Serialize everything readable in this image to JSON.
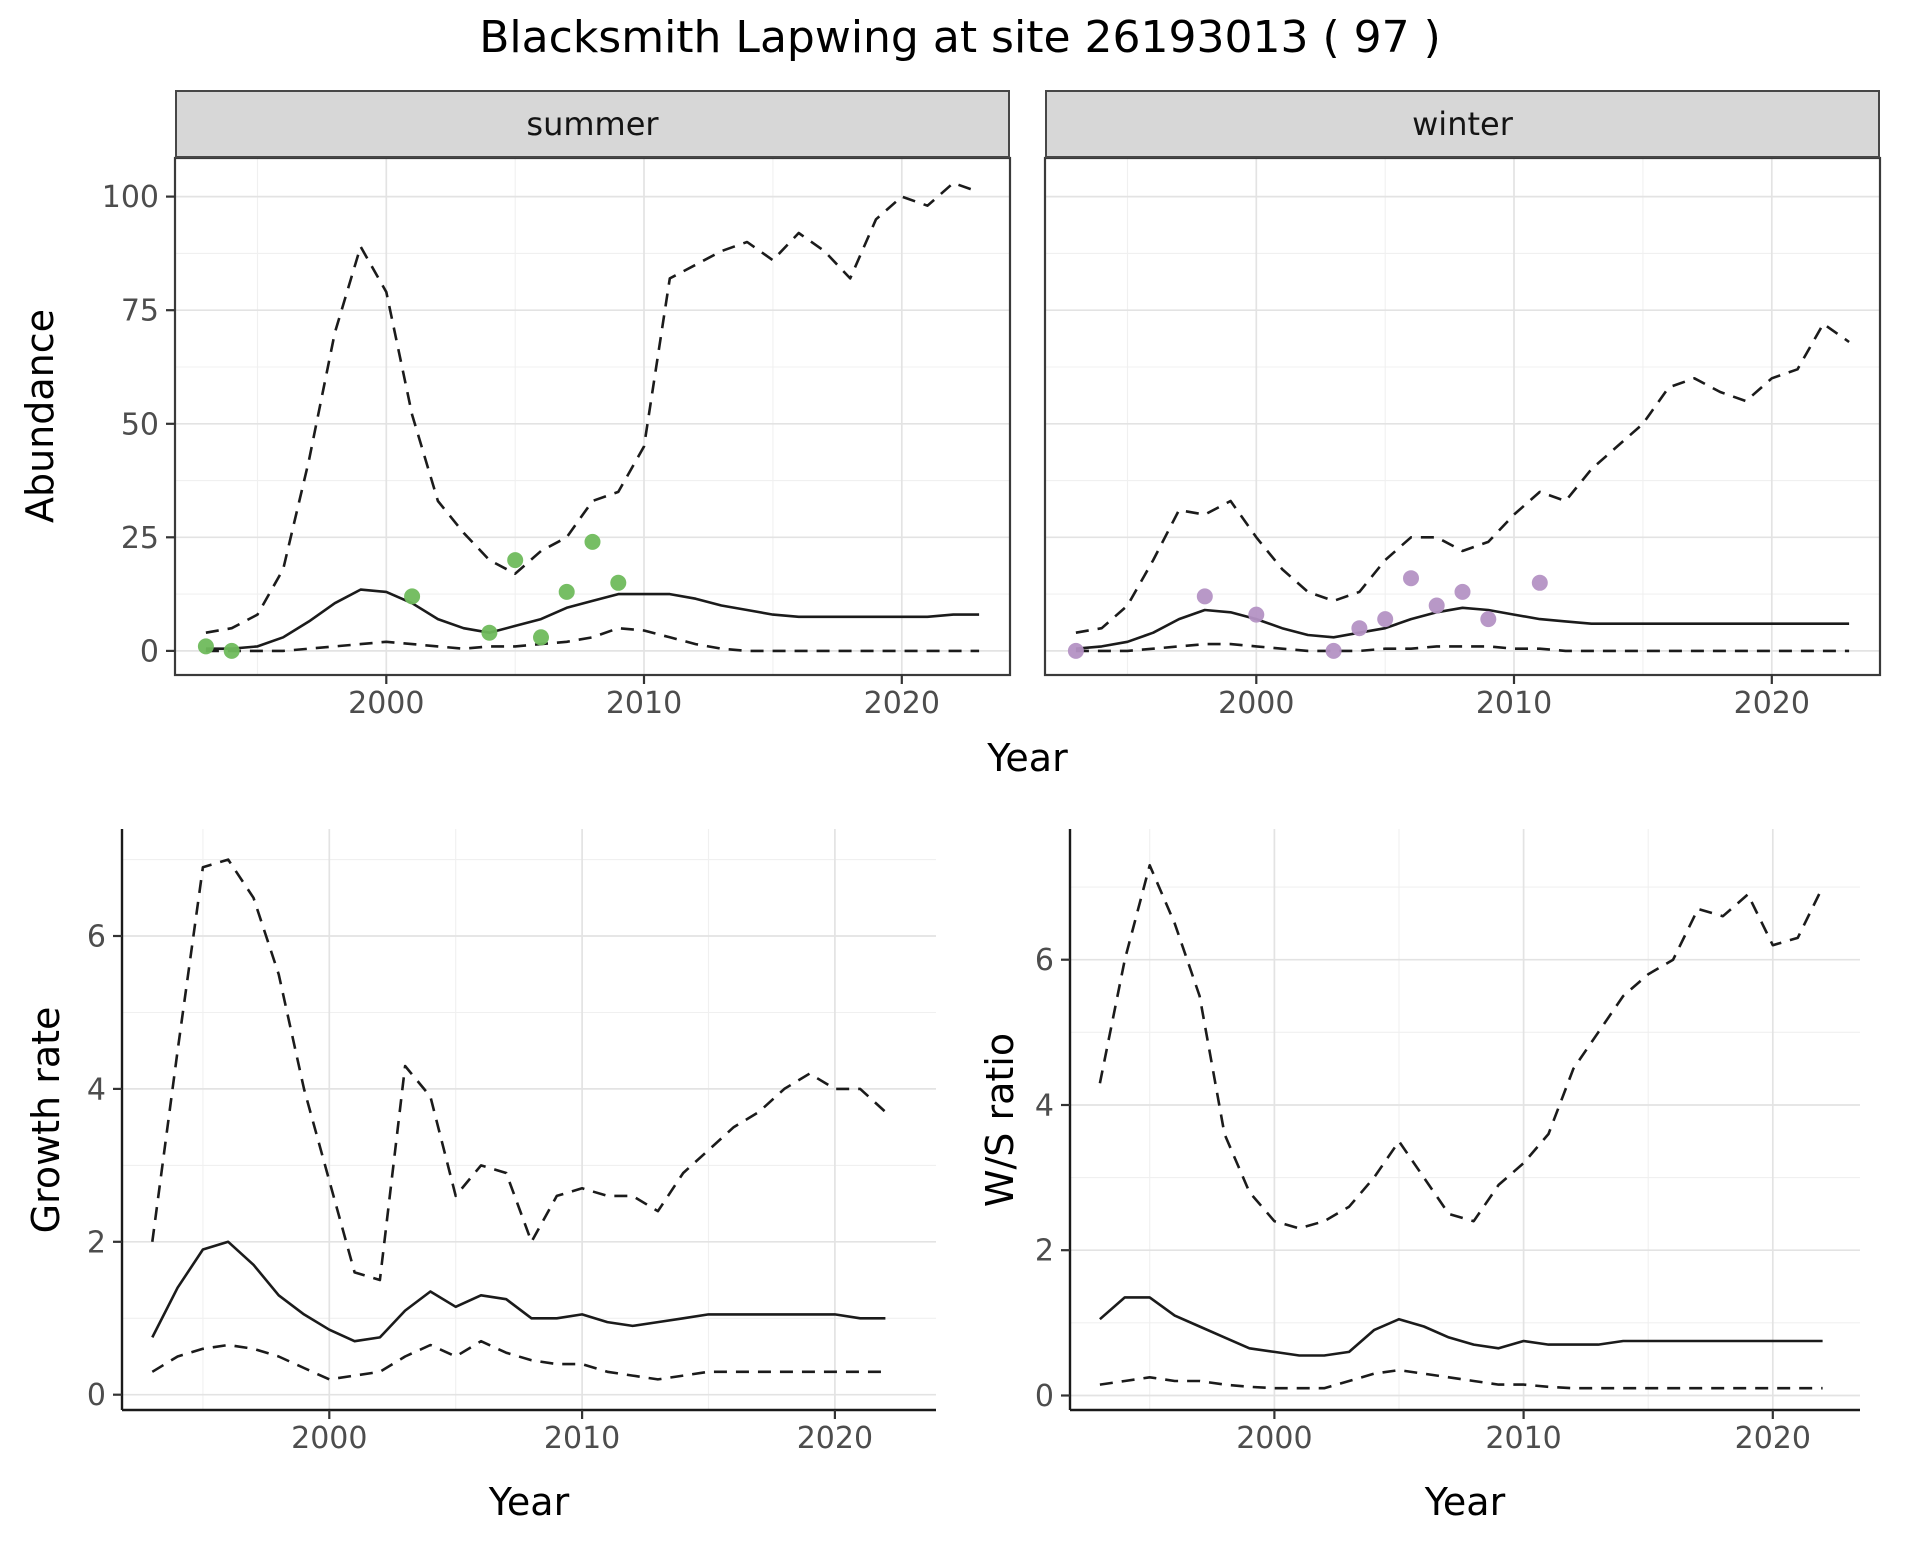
{
  "title": "Blacksmith Lapwing at site 26193013 ( 97 )",
  "axes": {
    "abundance_label": "Abundance",
    "year_label": "Year",
    "growth_label": "Growth rate",
    "ws_label": "W/S ratio"
  },
  "facets": [
    {
      "label": "summer"
    },
    {
      "label": "winter"
    }
  ],
  "colors": {
    "summer_point": "#6fba5c",
    "winter_point": "#b492c4",
    "line": "#1b1b1b",
    "strip_background": "#d7d7d7",
    "grid": "#e3e3e3"
  },
  "chart_data": [
    {
      "type": "line",
      "title": "Abundance",
      "xlabel": "Year",
      "ylabel": "Abundance",
      "xlim": [
        1992,
        2024
      ],
      "ylim": [
        0,
        105
      ],
      "x_ticks": [
        2000,
        2010,
        2020
      ],
      "y_ticks": [
        0,
        25,
        50,
        75,
        100
      ],
      "grid": true,
      "x": [
        1993,
        1994,
        1995,
        1996,
        1997,
        1998,
        1999,
        2000,
        2001,
        2002,
        2003,
        2004,
        2005,
        2006,
        2007,
        2008,
        2009,
        2010,
        2011,
        2012,
        2013,
        2014,
        2015,
        2016,
        2017,
        2018,
        2019,
        2020,
        2021,
        2022,
        2023
      ],
      "facets": [
        {
          "label": "summer",
          "series": [
            {
              "name": "upper-bound",
              "style": "dashed",
              "values": [
                4,
                5,
                8,
                18,
                42,
                70,
                89,
                79,
                52,
                33,
                26,
                20,
                17,
                22,
                25,
                33,
                35,
                45,
                82,
                85,
                88,
                90,
                86,
                92,
                88,
                82,
                95,
                100,
                98,
                103,
                101
              ]
            },
            {
              "name": "median",
              "style": "solid",
              "values": [
                0.5,
                0.5,
                1,
                3,
                6.5,
                10.5,
                13.5,
                13,
                10.5,
                7,
                5,
                4,
                5.5,
                7,
                9.5,
                11,
                12.5,
                12.5,
                12.5,
                11.5,
                10,
                9,
                8,
                7.5,
                7.5,
                7.5,
                7.5,
                7.5,
                7.5,
                8,
                8
              ]
            },
            {
              "name": "lower-bound",
              "style": "dashed",
              "values": [
                0,
                0,
                0,
                0,
                0.5,
                1,
                1.5,
                2,
                1.5,
                1,
                0.5,
                1,
                1,
                1.5,
                2,
                3,
                5,
                4.5,
                3,
                1.5,
                0.5,
                0,
                0,
                0,
                0,
                0,
                0,
                0,
                0,
                0,
                0
              ]
            }
          ],
          "points": {
            "name": "observed-counts-summer",
            "color": "#6fba5c",
            "xy": [
              [
                1993,
                1
              ],
              [
                1994,
                0
              ],
              [
                2001,
                12
              ],
              [
                2004,
                4
              ],
              [
                2005,
                20
              ],
              [
                2006,
                3
              ],
              [
                2007,
                13
              ],
              [
                2008,
                24
              ],
              [
                2009,
                15
              ]
            ]
          }
        },
        {
          "label": "winter",
          "series": [
            {
              "name": "upper-bound",
              "style": "dashed",
              "values": [
                4,
                5,
                10,
                20,
                31,
                30,
                33,
                25,
                18,
                13,
                11,
                13,
                20,
                25,
                25,
                22,
                24,
                30,
                35,
                33,
                40,
                45,
                50,
                58,
                60,
                57,
                55,
                60,
                62,
                72,
                68
              ]
            },
            {
              "name": "median",
              "style": "solid",
              "values": [
                0.5,
                1,
                2,
                4,
                7,
                9,
                8.5,
                7,
                5,
                3.5,
                3,
                4,
                5,
                7,
                8.5,
                9.5,
                9,
                8,
                7,
                6.5,
                6,
                6,
                6,
                6,
                6,
                6,
                6,
                6,
                6,
                6,
                6
              ]
            },
            {
              "name": "lower-bound",
              "style": "dashed",
              "values": [
                0,
                0,
                0,
                0.5,
                1,
                1.5,
                1.5,
                1,
                0.5,
                0,
                0,
                0,
                0.5,
                0.5,
                1,
                1,
                1,
                0.5,
                0.5,
                0,
                0,
                0,
                0,
                0,
                0,
                0,
                0,
                0,
                0,
                0,
                0
              ]
            }
          ],
          "points": {
            "name": "observed-counts-winter",
            "color": "#b492c4",
            "xy": [
              [
                1993,
                0
              ],
              [
                1998,
                12
              ],
              [
                2000,
                8
              ],
              [
                2003,
                0
              ],
              [
                2004,
                5
              ],
              [
                2005,
                7
              ],
              [
                2006,
                16
              ],
              [
                2007,
                10
              ],
              [
                2008,
                13
              ],
              [
                2009,
                7
              ],
              [
                2011,
                15
              ]
            ]
          }
        }
      ]
    },
    {
      "type": "line",
      "title": "Growth rate",
      "xlabel": "Year",
      "ylabel": "Growth rate",
      "xlim": [
        1992,
        2024
      ],
      "ylim": [
        0,
        7.4
      ],
      "x_ticks": [
        2000,
        2010,
        2020
      ],
      "y_ticks": [
        0,
        2,
        4,
        6
      ],
      "grid": true,
      "x": [
        1993,
        1994,
        1995,
        1996,
        1997,
        1998,
        1999,
        2000,
        2001,
        2002,
        2003,
        2004,
        2005,
        2006,
        2007,
        2008,
        2009,
        2010,
        2011,
        2012,
        2013,
        2014,
        2015,
        2016,
        2017,
        2018,
        2019,
        2020,
        2021,
        2022
      ],
      "series": [
        {
          "name": "upper-bound",
          "style": "dashed",
          "values": [
            2.0,
            4.5,
            6.9,
            7.0,
            6.5,
            5.5,
            4.0,
            2.8,
            1.6,
            1.5,
            4.3,
            3.9,
            2.6,
            3.0,
            2.9,
            2.0,
            2.6,
            2.7,
            2.6,
            2.6,
            2.4,
            2.9,
            3.2,
            3.5,
            3.7,
            4.0,
            4.2,
            4.0,
            4.0,
            3.7
          ]
        },
        {
          "name": "median",
          "style": "solid",
          "values": [
            0.75,
            1.4,
            1.9,
            2.0,
            1.7,
            1.3,
            1.05,
            0.85,
            0.7,
            0.75,
            1.1,
            1.35,
            1.15,
            1.3,
            1.25,
            1.0,
            1.0,
            1.05,
            0.95,
            0.9,
            0.95,
            1.0,
            1.05,
            1.05,
            1.05,
            1.05,
            1.05,
            1.05,
            1.0,
            1.0
          ]
        },
        {
          "name": "lower-bound",
          "style": "dashed",
          "values": [
            0.3,
            0.5,
            0.6,
            0.65,
            0.6,
            0.5,
            0.35,
            0.2,
            0.25,
            0.3,
            0.5,
            0.65,
            0.5,
            0.7,
            0.55,
            0.45,
            0.4,
            0.4,
            0.3,
            0.25,
            0.2,
            0.25,
            0.3,
            0.3,
            0.3,
            0.3,
            0.3,
            0.3,
            0.3,
            0.3
          ]
        }
      ]
    },
    {
      "type": "line",
      "title": "W/S ratio",
      "xlabel": "Year",
      "ylabel": "W/S ratio",
      "xlim": [
        1992,
        2023.5
      ],
      "ylim": [
        0,
        7.8
      ],
      "x_ticks": [
        2000,
        2010,
        2020
      ],
      "y_ticks": [
        0,
        2,
        4,
        6
      ],
      "grid": true,
      "x": [
        1993,
        1994,
        1995,
        1996,
        1997,
        1998,
        1999,
        2000,
        2001,
        2002,
        2003,
        2004,
        2005,
        2006,
        2007,
        2008,
        2009,
        2010,
        2011,
        2012,
        2013,
        2014,
        2015,
        2016,
        2017,
        2018,
        2019,
        2020,
        2021,
        2022
      ],
      "series": [
        {
          "name": "upper-bound",
          "style": "dashed",
          "values": [
            4.3,
            6.0,
            7.3,
            6.5,
            5.5,
            3.6,
            2.8,
            2.4,
            2.3,
            2.4,
            2.6,
            3.0,
            3.5,
            3.0,
            2.5,
            2.4,
            2.9,
            3.2,
            3.6,
            4.5,
            5.0,
            5.5,
            5.8,
            6.0,
            6.7,
            6.6,
            6.9,
            6.2,
            6.3,
            7.0
          ]
        },
        {
          "name": "median",
          "style": "solid",
          "values": [
            1.05,
            1.35,
            1.35,
            1.1,
            0.95,
            0.8,
            0.65,
            0.6,
            0.55,
            0.55,
            0.6,
            0.9,
            1.05,
            0.95,
            0.8,
            0.7,
            0.65,
            0.75,
            0.7,
            0.7,
            0.7,
            0.75,
            0.75,
            0.75,
            0.75,
            0.75,
            0.75,
            0.75,
            0.75,
            0.75
          ]
        },
        {
          "name": "lower-bound",
          "style": "dashed",
          "values": [
            0.15,
            0.2,
            0.25,
            0.2,
            0.2,
            0.15,
            0.12,
            0.1,
            0.1,
            0.1,
            0.2,
            0.3,
            0.35,
            0.3,
            0.25,
            0.2,
            0.15,
            0.15,
            0.12,
            0.1,
            0.1,
            0.1,
            0.1,
            0.1,
            0.1,
            0.1,
            0.1,
            0.1,
            0.1,
            0.1
          ]
        }
      ]
    }
  ]
}
